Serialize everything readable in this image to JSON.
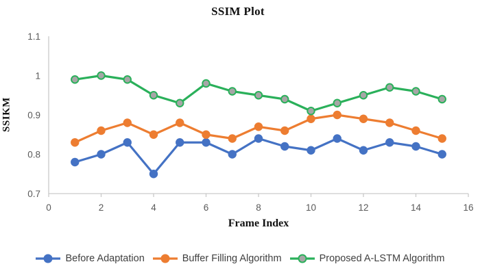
{
  "chart_data": {
    "type": "line",
    "title": "SSIM Plot",
    "xlabel": "Frame Index",
    "ylabel": "SSIKM",
    "grid": false,
    "legend_position": "bottom",
    "xlim": [
      0,
      16
    ],
    "ylim": [
      0.7,
      1.1
    ],
    "x_ticks": [
      0,
      2,
      4,
      6,
      8,
      10,
      12,
      14,
      16
    ],
    "y_ticks": [
      0.7,
      0.8,
      0.9,
      1,
      1.1
    ],
    "y_tick_labels": [
      "0.7",
      "0.8",
      "0.9",
      "1",
      "1.1"
    ],
    "x": [
      1,
      2,
      3,
      4,
      5,
      6,
      7,
      8,
      9,
      10,
      11,
      12,
      13,
      14,
      15
    ],
    "series": [
      {
        "name": "Before Adaptation",
        "color": "#4472c4",
        "marker_fill": "#4472c4",
        "values": [
          0.78,
          0.8,
          0.83,
          0.75,
          0.83,
          0.83,
          0.8,
          0.84,
          0.82,
          0.81,
          0.84,
          0.81,
          0.83,
          0.82,
          0.8
        ]
      },
      {
        "name": "Buffer Filling Algorithm",
        "color": "#ed7d31",
        "marker_fill": "#ed7d31",
        "values": [
          0.83,
          0.86,
          0.88,
          0.85,
          0.88,
          0.85,
          0.84,
          0.87,
          0.86,
          0.89,
          0.9,
          0.89,
          0.88,
          0.86,
          0.84
        ]
      },
      {
        "name": "Proposed A-LSTM Algorithm",
        "color": "#2ab05a",
        "marker_fill": "#a6a6a6",
        "values": [
          0.99,
          1.0,
          0.99,
          0.95,
          0.93,
          0.98,
          0.96,
          0.95,
          0.94,
          0.91,
          0.93,
          0.95,
          0.97,
          0.96,
          0.94
        ]
      }
    ],
    "style": {
      "axis_color": "#c9c9c9",
      "tick_label_color": "#595959",
      "legend_text_color": "#404040",
      "title_color": "#111111"
    }
  }
}
